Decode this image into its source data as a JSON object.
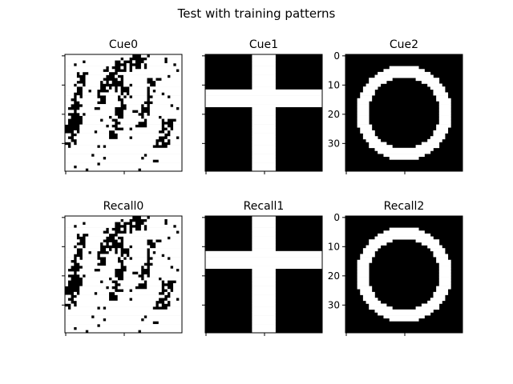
{
  "figure": {
    "title": "Test with training patterns"
  },
  "chart_data": [
    {
      "type": "heatmap",
      "title": "Cue0",
      "cmap": "gray",
      "grid": false,
      "pattern": "noisy-blob",
      "yticks": [],
      "yticks_shown": false
    },
    {
      "type": "heatmap",
      "title": "Cue1",
      "cmap": "gray",
      "grid": false,
      "pattern": "cross",
      "yticks": [],
      "yticks_shown": false
    },
    {
      "type": "heatmap",
      "title": "Cue2",
      "cmap": "gray",
      "grid": false,
      "pattern": "ring",
      "yticks": [
        0,
        10,
        20,
        30
      ],
      "yticks_shown": true
    },
    {
      "type": "heatmap",
      "title": "Recall0",
      "cmap": "gray",
      "grid": false,
      "pattern": "noisy-blob",
      "yticks": [],
      "yticks_shown": false
    },
    {
      "type": "heatmap",
      "title": "Recall1",
      "cmap": "gray",
      "grid": false,
      "pattern": "cross",
      "yticks": [],
      "yticks_shown": false
    },
    {
      "type": "heatmap",
      "title": "Recall2",
      "cmap": "gray",
      "grid": false,
      "pattern": "ring",
      "yticks": [
        0,
        10,
        20,
        30
      ],
      "yticks_shown": true
    }
  ]
}
